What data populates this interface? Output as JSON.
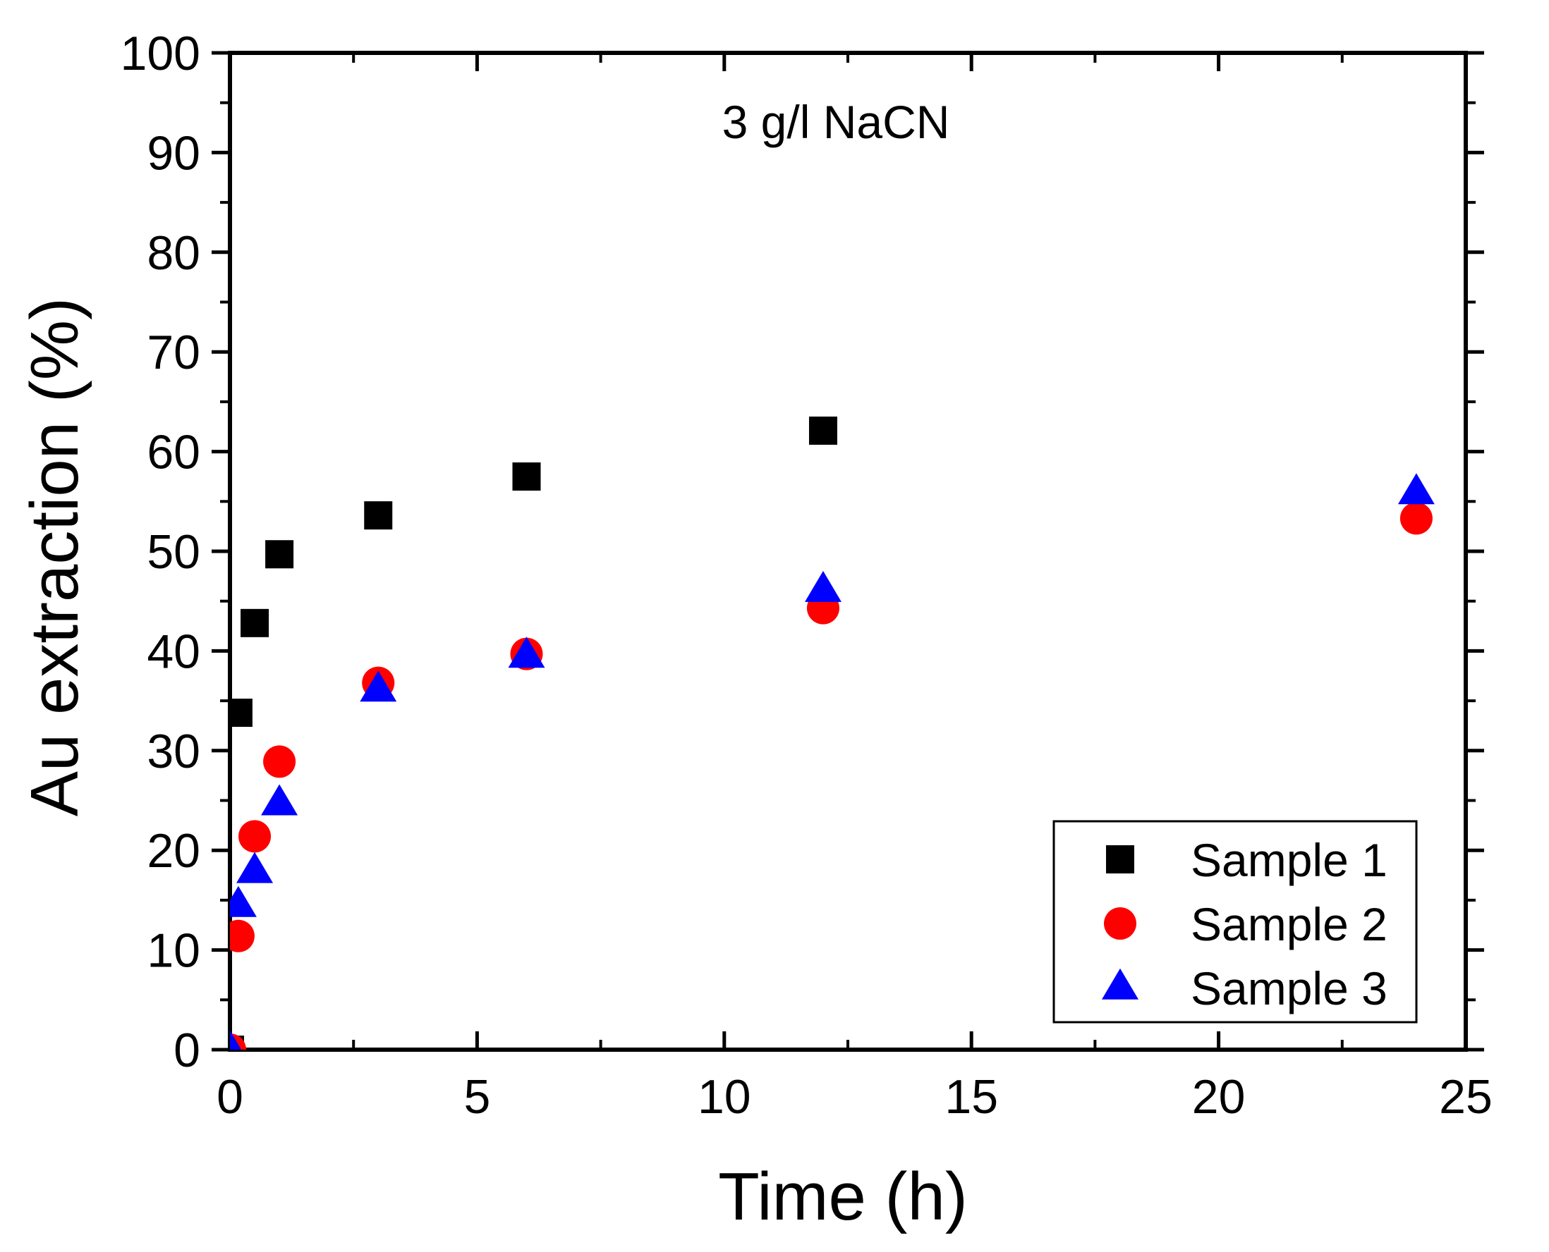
{
  "chart_data": {
    "type": "scatter",
    "title": "",
    "xlabel": "Time (h)",
    "ylabel": "Au extraction (%)",
    "xlim": [
      0,
      25
    ],
    "ylim": [
      0,
      100
    ],
    "xticks": [
      0,
      5,
      10,
      15,
      20,
      25
    ],
    "yticks": [
      0,
      10,
      20,
      30,
      40,
      50,
      60,
      70,
      80,
      90,
      100
    ],
    "xtick_labels": [
      "0",
      "5",
      "10",
      "15",
      "20",
      "25"
    ],
    "ytick_labels": [
      "0",
      "10",
      "20",
      "30",
      "40",
      "50",
      "60",
      "70",
      "80",
      "90",
      "100"
    ],
    "grid": false,
    "annotation": "3 g/l NaCN",
    "legend_position": "bottom-right",
    "series": [
      {
        "name": "Sample 1",
        "marker": "square",
        "color": "#000000",
        "points": [
          [
            0,
            0
          ],
          [
            0.17,
            33.8
          ],
          [
            0.5,
            42.8
          ],
          [
            1,
            49.7
          ],
          [
            3,
            53.6
          ],
          [
            6,
            57.5
          ],
          [
            12,
            62.1
          ]
        ]
      },
      {
        "name": "Sample 2",
        "marker": "circle",
        "color": "#ff0000",
        "points": [
          [
            0,
            0
          ],
          [
            0.17,
            11.4
          ],
          [
            0.5,
            21.4
          ],
          [
            1,
            28.9
          ],
          [
            3,
            36.8
          ],
          [
            6,
            39.7
          ],
          [
            12,
            44.3
          ],
          [
            24,
            53.3
          ]
        ]
      },
      {
        "name": "Sample 3",
        "marker": "triangle",
        "color": "#0000ff",
        "points": [
          [
            0,
            0
          ],
          [
            0.17,
            14.5
          ],
          [
            0.5,
            17.9
          ],
          [
            1,
            24.7
          ],
          [
            3,
            36.1
          ],
          [
            6,
            39.5
          ],
          [
            12,
            46.1
          ],
          [
            24,
            55.9
          ]
        ]
      }
    ]
  }
}
